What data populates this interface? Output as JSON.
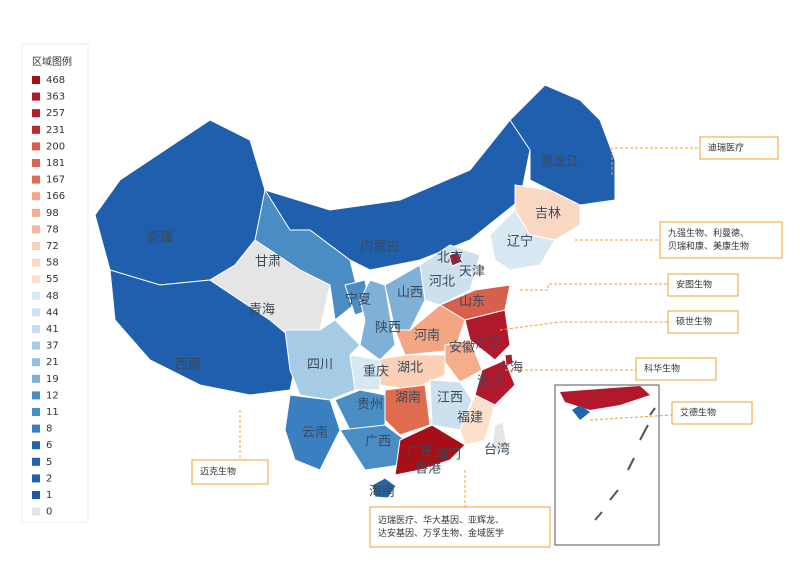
{
  "legend": {
    "title": "区域图例",
    "items": [
      {
        "value": 468,
        "color": "#a50f15"
      },
      {
        "value": 363,
        "color": "#b2182b"
      },
      {
        "value": 257,
        "color": "#b51f2a"
      },
      {
        "value": 231,
        "color": "#c0282b"
      },
      {
        "value": 200,
        "color": "#d6604d"
      },
      {
        "value": 181,
        "color": "#d9664f"
      },
      {
        "value": 167,
        "color": "#e06c50"
      },
      {
        "value": 166,
        "color": "#f4a582"
      },
      {
        "value": 98,
        "color": "#f5ad8c"
      },
      {
        "value": 78,
        "color": "#f6b79a"
      },
      {
        "value": 72,
        "color": "#fbd0b6"
      },
      {
        "value": 58,
        "color": "#fbd8c4"
      },
      {
        "value": 55,
        "color": "#fde0cc"
      },
      {
        "value": 48,
        "color": "#d8e8f3"
      },
      {
        "value": 44,
        "color": "#cde0ee"
      },
      {
        "value": 41,
        "color": "#c6dbef"
      },
      {
        "value": 37,
        "color": "#a6cbe4"
      },
      {
        "value": 21,
        "color": "#92c0e0"
      },
      {
        "value": 19,
        "color": "#7fb0d8"
      },
      {
        "value": 12,
        "color": "#4a8cc4"
      },
      {
        "value": 11,
        "color": "#4393c3"
      },
      {
        "value": 8,
        "color": "#3a7fc0"
      },
      {
        "value": 6,
        "color": "#2166ac"
      },
      {
        "value": 5,
        "color": "#2363ad"
      },
      {
        "value": 2,
        "color": "#1f5fae"
      },
      {
        "value": 1,
        "color": "#1c5aa8"
      },
      {
        "value": 0,
        "color": "#e5e5e5"
      }
    ]
  },
  "provinces": [
    {
      "name": "新疆",
      "color": "#1f5fae"
    },
    {
      "name": "西藏",
      "color": "#1f5fae"
    },
    {
      "name": "青海",
      "color": "#e5e5e5"
    },
    {
      "name": "甘肃",
      "color": "#4a8cc4"
    },
    {
      "name": "内蒙古",
      "color": "#1f5fae"
    },
    {
      "name": "黑龙江",
      "color": "#1f5fae"
    },
    {
      "name": "吉林",
      "color": "#fbd8c4"
    },
    {
      "name": "辽宁",
      "color": "#d8e8f3"
    },
    {
      "name": "宁夏",
      "color": "#4a8cc4"
    },
    {
      "name": "陕西",
      "color": "#7fb0d8"
    },
    {
      "name": "山西",
      "color": "#7fb0d8"
    },
    {
      "name": "河北",
      "color": "#cde0ee"
    },
    {
      "name": "山东",
      "color": "#d6604d"
    },
    {
      "name": "河南",
      "color": "#f4a582"
    },
    {
      "name": "江苏",
      "color": "#b2182b"
    },
    {
      "name": "安徽",
      "color": "#f5ad8c"
    },
    {
      "name": "浙江",
      "color": "#b2182b"
    },
    {
      "name": "湖北",
      "color": "#fbd0b6"
    },
    {
      "name": "重庆",
      "color": "#d8e8f3"
    },
    {
      "name": "四川",
      "color": "#a6cbe4"
    },
    {
      "name": "湖南",
      "color": "#e06c50"
    },
    {
      "name": "江西",
      "color": "#cde0ee"
    },
    {
      "name": "福建",
      "color": "#fde0cc"
    },
    {
      "name": "贵州",
      "color": "#4a8cc4"
    },
    {
      "name": "云南",
      "color": "#3a7fc0"
    },
    {
      "name": "广西",
      "color": "#4a8cc4"
    },
    {
      "name": "广东",
      "color": "#a50f15"
    },
    {
      "name": "海南",
      "color": "#2166ac"
    },
    {
      "name": "北京",
      "color": "#b2182b"
    },
    {
      "name": "天津",
      "color": "#c6dbef"
    },
    {
      "name": "上海",
      "color": "#b2182b"
    },
    {
      "name": "澳门",
      "color": "#e5e5e5"
    },
    {
      "name": "香港",
      "color": "#e5e5e5"
    },
    {
      "name": "台湾",
      "color": "#e5e5e5"
    }
  ],
  "callouts": [
    {
      "lines": [
        "迪瑞医疗"
      ]
    },
    {
      "lines": [
        "九强生物、利曼德、",
        "贝瑞和康、美康生物"
      ]
    },
    {
      "lines": [
        "安图生物"
      ]
    },
    {
      "lines": [
        "硕世生物"
      ]
    },
    {
      "lines": [
        "科华生物"
      ]
    },
    {
      "lines": [
        "艾德生物"
      ]
    },
    {
      "lines": [
        "迈克生物"
      ]
    },
    {
      "lines": [
        "迈瑞医疗、华大基因、亚辉龙、",
        "达安基因、万孚生物、金域医学"
      ]
    }
  ]
}
